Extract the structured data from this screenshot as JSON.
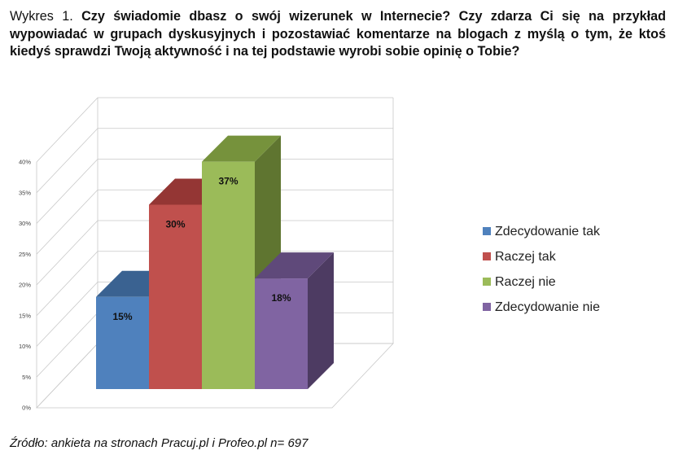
{
  "caption": {
    "prefix": "Wykres 1.",
    "question": "Czy świadomie dbasz o swój wizerunek w Internecie? Czy zdarza Ci się na przykład wypowiadać w grupach dyskusyjnych i pozostawiać komentarze na blogach z myślą o tym, że ktoś kiedyś sprawdzi Twoją aktywność i na tej podstawie wyrobi sobie opinię o Tobie?"
  },
  "source": "Źródło: ankieta na stronach Pracuj.pl i Profeo.pl n= 697",
  "chart_data": {
    "type": "bar",
    "style": "3d-column",
    "title": "",
    "xlabel": "",
    "ylabel": "",
    "ylim": [
      0,
      40
    ],
    "yticks": [
      "0%",
      "5%",
      "10%",
      "15%",
      "20%",
      "25%",
      "30%",
      "35%",
      "40%"
    ],
    "grid": true,
    "legend_position": "right",
    "categories": [
      "Zdecydowanie tak",
      "Raczej tak",
      "Raczej nie",
      "Zdecydowanie nie"
    ],
    "values": [
      15,
      30,
      37,
      18
    ],
    "data_labels": [
      "15%",
      "30%",
      "37%",
      "18%"
    ],
    "colors": [
      {
        "front": "#4f81bd",
        "side": "#2c4d75",
        "top": "#3a6291"
      },
      {
        "front": "#c0504d",
        "side": "#772c2a",
        "top": "#943634"
      },
      {
        "front": "#9bbb59",
        "side": "#5f7530",
        "top": "#76923c"
      },
      {
        "front": "#8064a2",
        "side": "#4d3b62",
        "top": "#5f497a"
      }
    ]
  }
}
